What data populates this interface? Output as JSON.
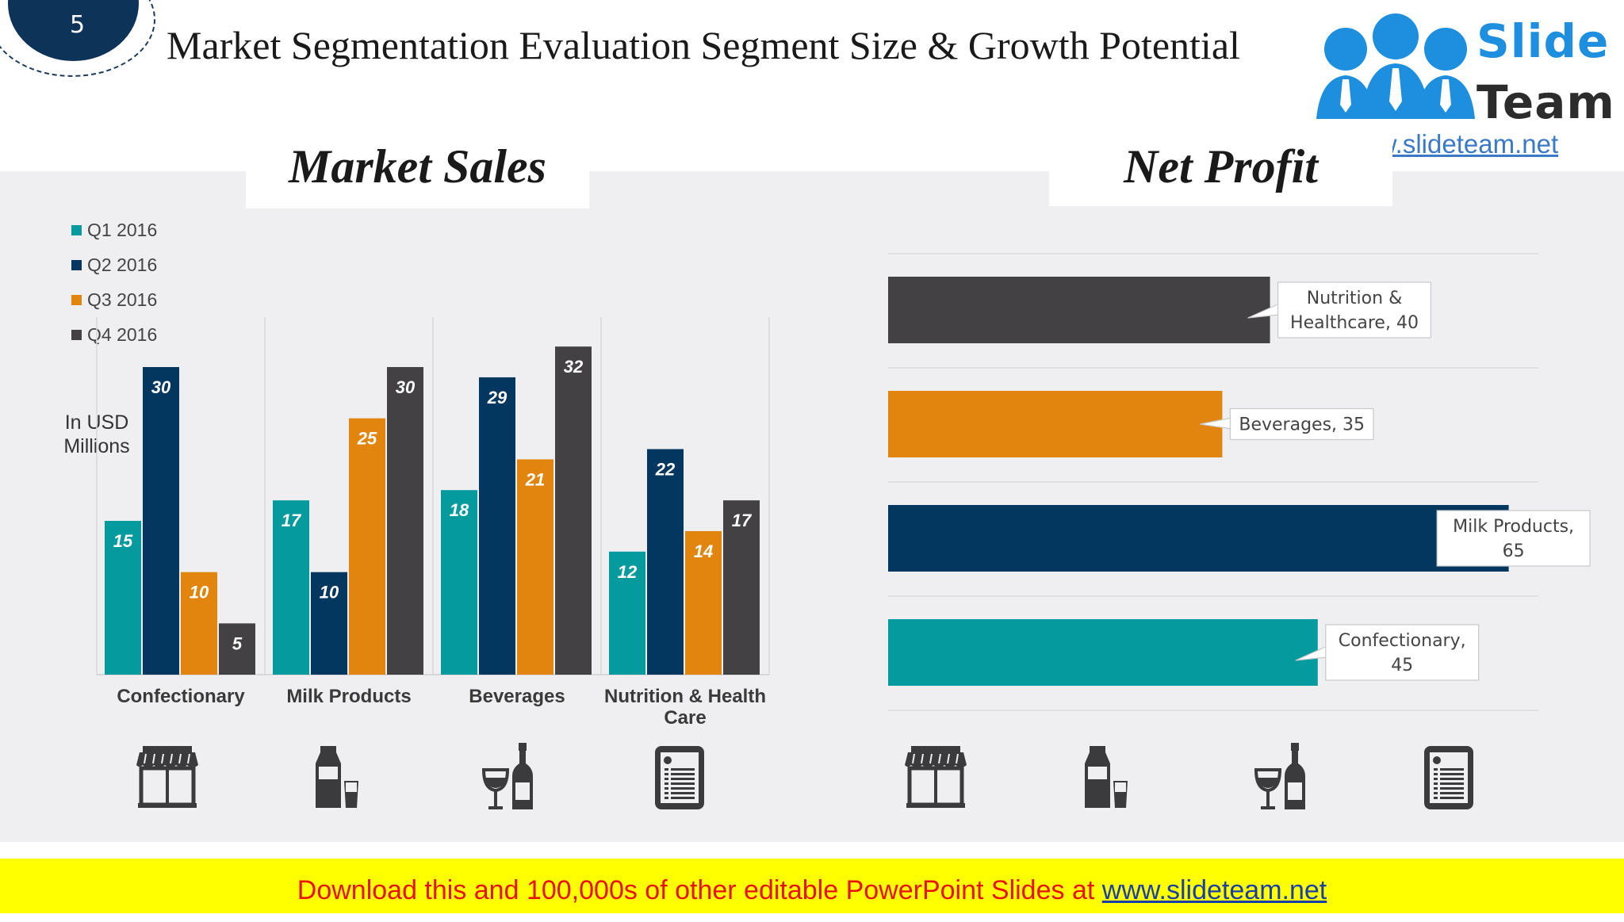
{
  "slide": {
    "number": "5",
    "title": "Market Segmentation Evaluation Segment Size & Growth Potential"
  },
  "logo": {
    "line1": "Slide",
    "line2": "Team",
    "url": "www.slideteam.net"
  },
  "footer": {
    "text": "Download this and 100,000s of other editable PowerPoint Slides at ",
    "link": "www.slideteam.net"
  },
  "colors": {
    "teal": "#059a9d",
    "navy": "#04375f",
    "orange": "#e2850f",
    "charcoal": "#434144"
  },
  "icons": [
    "storefront-icon",
    "milk-bottle-icon",
    "wine-bottle-glass-icon",
    "nutrition-clipboard-icon"
  ],
  "chart_data": [
    {
      "type": "bar",
      "title": "Market Sales",
      "ylabel": "In USD Millions",
      "categories": [
        "Confectionary",
        "Milk Products",
        "Beverages",
        "Nutrition & Health Care"
      ],
      "series": [
        {
          "name": "Q1 2016",
          "color": "#059a9d",
          "values": [
            15,
            17,
            18,
            12
          ]
        },
        {
          "name": "Q2 2016",
          "color": "#04375f",
          "values": [
            30,
            10,
            29,
            22
          ]
        },
        {
          "name": "Q3 2016",
          "color": "#e2850f",
          "values": [
            10,
            25,
            21,
            14
          ]
        },
        {
          "name": "Q4 2016",
          "color": "#434144",
          "values": [
            5,
            30,
            32,
            17
          ]
        }
      ],
      "ylim": [
        0,
        35
      ],
      "legend": "top-left",
      "data_labels": true
    },
    {
      "type": "bar",
      "orientation": "horizontal",
      "title": "Net Profit",
      "categories": [
        "Nutrition & Healthcare",
        "Beverages",
        "Milk Products",
        "Confectionary"
      ],
      "values": [
        40,
        35,
        65,
        45
      ],
      "colors": [
        "#434144",
        "#e2850f",
        "#04375f",
        "#059a9d"
      ],
      "labels": [
        [
          "Nutrition &",
          "Healthcare, 40"
        ],
        [
          "Beverages, 35"
        ],
        [
          "Milk Products,",
          "65"
        ],
        [
          "Confectionary,",
          "45"
        ]
      ],
      "xlim": [
        0,
        70
      ],
      "grid": true
    }
  ]
}
